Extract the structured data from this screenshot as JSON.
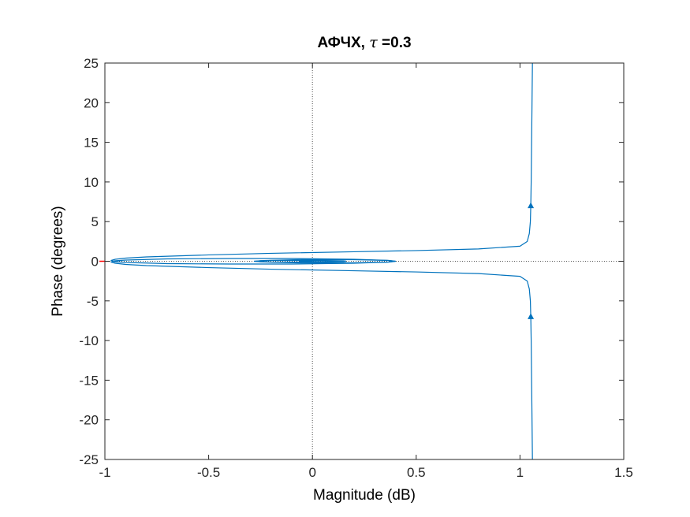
{
  "chart_data": {
    "type": "line",
    "title": {
      "prefix": "АФЧХ, ",
      "symbol": "τ",
      "suffix": " =0.3"
    },
    "xlabel": "Magnitude (dB)",
    "ylabel": "Phase (degrees)",
    "xlim": [
      -1,
      1.5
    ],
    "ylim": [
      -25,
      25
    ],
    "xticks": [
      -1,
      -0.5,
      0,
      0.5,
      1,
      1.5
    ],
    "xtick_labels": [
      "-1",
      "-0.5",
      "0",
      "0.5",
      "1",
      "1.5"
    ],
    "yticks": [
      -25,
      -20,
      -15,
      -10,
      -5,
      0,
      5,
      10,
      15,
      20,
      25
    ],
    "ytick_labels": [
      "-25",
      "-20",
      "-15",
      "-10",
      "-5",
      "0",
      "5",
      "10",
      "15",
      "20",
      "25"
    ],
    "grid": false,
    "reference_lines": {
      "x": 0,
      "y": 0,
      "style": "dotted"
    },
    "critical_point": {
      "x": -1,
      "y": 0,
      "color": "#ff0000"
    },
    "colors": {
      "series": "#0072bd",
      "axes": "#262626",
      "reference": "#555555"
    },
    "series": [
      {
        "branch": "positive-frequency",
        "x": [
          1.06,
          1.058,
          1.056,
          1.054,
          1.052,
          1.05,
          1.045,
          1.035,
          1.0,
          0.8,
          0.5,
          0.2,
          -0.2,
          -0.5,
          -0.8,
          -0.9,
          -0.95,
          -0.97,
          -0.955,
          -0.9,
          -0.7,
          -0.4,
          -0.1,
          0.2,
          0.36,
          0.4,
          0.37,
          0.2,
          -0.05,
          -0.25,
          -0.28,
          -0.2,
          0.0,
          0.15,
          0.16,
          0.05,
          -0.05,
          -0.06,
          0.0
        ],
        "y": [
          25.0,
          20.0,
          15.0,
          10.0,
          7.0,
          5.0,
          3.5,
          2.5,
          1.9,
          1.55,
          1.35,
          1.2,
          1.0,
          0.8,
          0.55,
          0.4,
          0.25,
          0.1,
          -0.05,
          -0.15,
          -0.3,
          -0.35,
          -0.35,
          -0.25,
          -0.12,
          0.0,
          0.1,
          0.2,
          0.22,
          0.08,
          -0.02,
          -0.1,
          -0.12,
          -0.05,
          0.03,
          0.07,
          0.05,
          0.0,
          0.0
        ]
      },
      {
        "branch": "negative-frequency",
        "x": [
          1.06,
          1.058,
          1.056,
          1.054,
          1.052,
          1.05,
          1.045,
          1.035,
          1.0,
          0.8,
          0.5,
          0.2,
          -0.2,
          -0.5,
          -0.8,
          -0.9,
          -0.95,
          -0.97,
          -0.955,
          -0.9,
          -0.7,
          -0.4,
          -0.1,
          0.2,
          0.36,
          0.4,
          0.37,
          0.2,
          -0.05,
          -0.25,
          -0.28,
          -0.2,
          0.0,
          0.15,
          0.16,
          0.05,
          -0.05,
          -0.06,
          0.0
        ],
        "y": [
          -25.0,
          -20.0,
          -15.0,
          -10.0,
          -7.0,
          -5.0,
          -3.5,
          -2.5,
          -1.9,
          -1.55,
          -1.35,
          -1.2,
          -1.0,
          -0.8,
          -0.55,
          -0.4,
          -0.25,
          -0.1,
          0.05,
          0.15,
          0.3,
          0.35,
          0.35,
          0.25,
          0.12,
          0.0,
          -0.1,
          -0.2,
          -0.22,
          -0.08,
          0.02,
          0.1,
          0.12,
          0.05,
          -0.03,
          -0.07,
          -0.05,
          0.0,
          0.0
        ]
      }
    ],
    "arrows": [
      {
        "x": 1.052,
        "y": 7.0,
        "direction": "up"
      },
      {
        "x": 1.052,
        "y": -7.0,
        "direction": "up"
      }
    ]
  }
}
